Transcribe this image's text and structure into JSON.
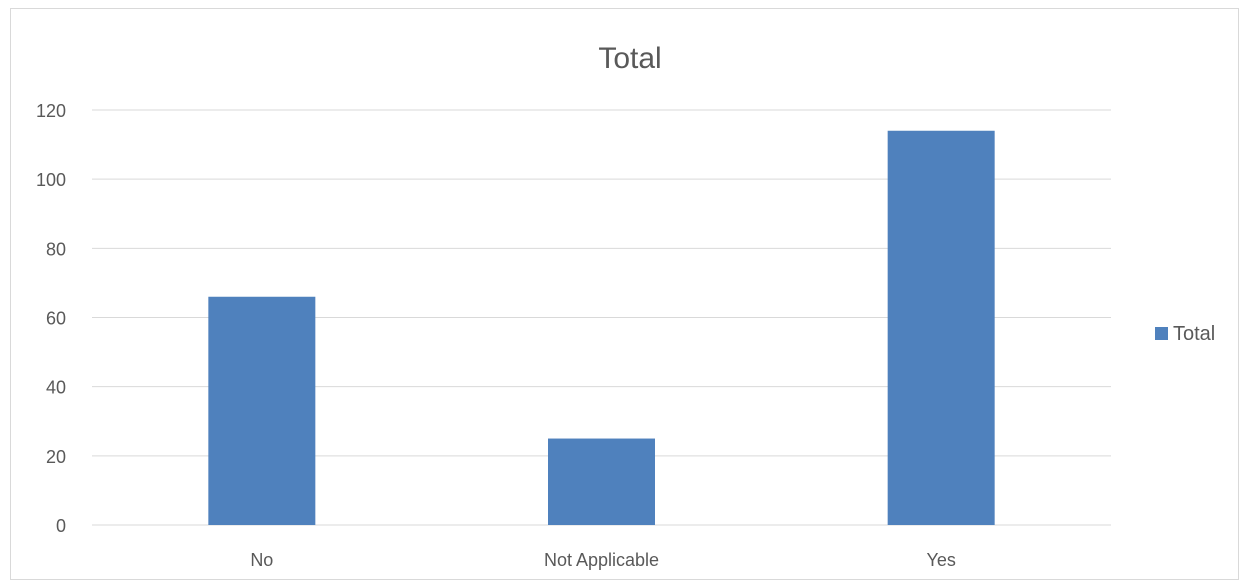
{
  "chart_data": {
    "type": "bar",
    "title": "Total",
    "categories": [
      "No",
      "Not Applicable",
      "Yes"
    ],
    "series": [
      {
        "name": "Total",
        "values": [
          66,
          25,
          114
        ]
      }
    ],
    "ylim": [
      0,
      120
    ],
    "yticks": [
      "0",
      "20",
      "40",
      "60",
      "80",
      "100",
      "120"
    ],
    "grid": true,
    "legend_position": "right",
    "bar_color": "#4f81bd",
    "grid_color": "#d9d9d9",
    "text_color": "#595959"
  }
}
